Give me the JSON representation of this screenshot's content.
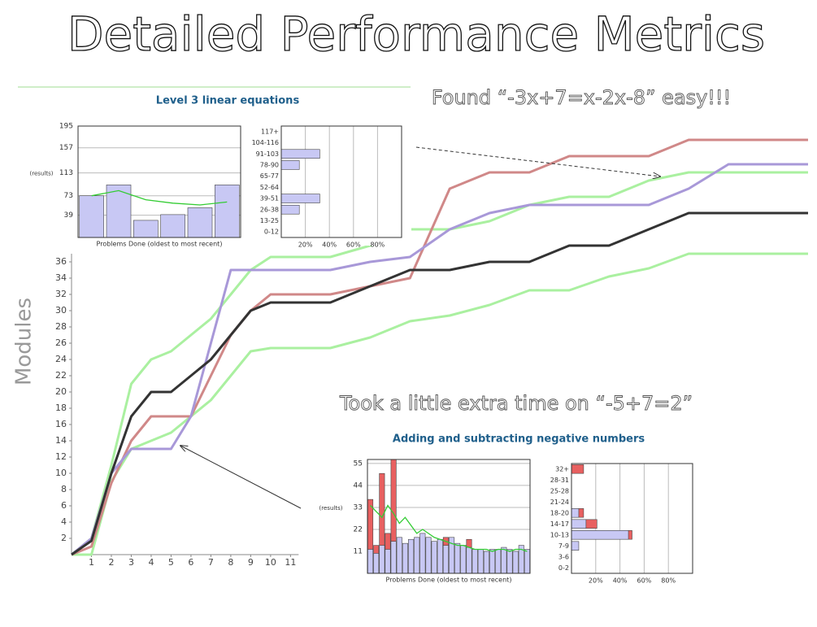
{
  "title": "Detailed Performance Metrics",
  "annotations": [
    "Found “-3x+7=x-2x-8” easy!!!",
    "Took a little extra time on “-5+7=2”"
  ],
  "chart_data": [
    {
      "type": "line",
      "ylabel": "Modules",
      "x": [
        0,
        1,
        2,
        3,
        4,
        5,
        6,
        7,
        8,
        9,
        10,
        11,
        13,
        15,
        17,
        19,
        21,
        23,
        25,
        27,
        29,
        31,
        33,
        35,
        37
      ],
      "xlim": [
        0,
        37
      ],
      "xticks": [
        1,
        2,
        3,
        4,
        5,
        6,
        7,
        8,
        9,
        10,
        11
      ],
      "ylim": [
        0,
        52
      ],
      "yticks": [
        2,
        4,
        6,
        8,
        10,
        12,
        14,
        16,
        18,
        20,
        22,
        24,
        26,
        28,
        30,
        32,
        34,
        36
      ],
      "series": [
        {
          "color": "#aaf0a0",
          "values": [
            0,
            2,
            11,
            21,
            24,
            25,
            27,
            29,
            32,
            35,
            36.6,
            36.6,
            36.6,
            38,
            40,
            40,
            41,
            43,
            44,
            44,
            46,
            47,
            47,
            47,
            47
          ]
        },
        {
          "color": "#aaf0a0",
          "values": [
            0,
            0,
            9,
            13,
            14,
            15,
            17,
            19,
            22,
            25,
            25.4,
            25.4,
            25.4,
            26.7,
            28.7,
            29.4,
            30.7,
            32.5,
            32.5,
            34.2,
            35.2,
            37,
            37,
            37,
            37
          ]
        },
        {
          "color": "#d08888",
          "values": [
            0,
            1,
            8.8,
            14,
            17,
            17,
            17,
            22,
            27,
            30,
            32,
            32,
            32,
            33,
            34,
            45,
            47,
            47,
            49,
            49,
            49,
            51,
            51,
            51,
            51
          ]
        },
        {
          "color": "#a898d8",
          "values": [
            0,
            2,
            10,
            13,
            13,
            13,
            17,
            26,
            35,
            35,
            35,
            35,
            35,
            36,
            36.6,
            40,
            42,
            43,
            43,
            43,
            43,
            45,
            48,
            48,
            48
          ]
        },
        {
          "color": "#333333",
          "values": [
            0,
            1.7,
            10,
            17,
            20,
            20,
            22,
            24,
            27,
            30,
            31,
            31,
            31,
            33,
            35,
            35,
            36,
            36,
            38,
            38,
            40,
            42,
            42,
            42,
            42
          ]
        }
      ]
    },
    {
      "type": "bar",
      "title": "Level 3 linear equations",
      "ylabel": "(results)",
      "xlabel": "Problems Done (oldest to most recent)",
      "categories": [
        null,
        null,
        null,
        null,
        null,
        null
      ],
      "ylim": [
        0,
        195
      ],
      "yticks": [
        39,
        73,
        113,
        157,
        195
      ],
      "grid": true,
      "series": [
        {
          "style": "bar",
          "color": "#c8c8f4",
          "values": [
            73,
            92,
            30,
            40,
            52,
            92
          ]
        },
        {
          "style": "line",
          "color": "#33cc33",
          "values": [
            73,
            82,
            66,
            60,
            57,
            62
          ]
        }
      ]
    },
    {
      "type": "hbar",
      "categories": [
        "117+",
        "104-116",
        "91-103",
        "78-90",
        "65-77",
        "52-64",
        "39-51",
        "26-38",
        "13-25",
        "0-12"
      ],
      "xlim": [
        0,
        100
      ],
      "xticks": [
        {
          "value": 20,
          "label": "20%"
        },
        {
          "value": 40,
          "label": "40%"
        },
        {
          "value": 60,
          "label": "60%"
        },
        {
          "value": 80,
          "label": "80%"
        }
      ],
      "grid": true,
      "series": [
        {
          "color": "#c8c8f4",
          "values": [
            0,
            0,
            32,
            15,
            0,
            0,
            32,
            15,
            0,
            0
          ]
        }
      ]
    },
    {
      "type": "bar",
      "title": "Adding and subtracting negative numbers",
      "ylabel": "(results)",
      "xlabel": "Problems Done (oldest to most recent)",
      "categories": [
        null,
        null,
        null,
        null,
        null,
        null,
        null,
        null,
        null,
        null,
        null,
        null,
        null,
        null,
        null,
        null,
        null,
        null,
        null,
        null,
        null,
        null,
        null,
        null,
        null,
        null,
        null,
        null
      ],
      "ylim": [
        0,
        57
      ],
      "yticks": [
        11,
        22,
        33,
        44,
        55
      ],
      "grid": true,
      "series": [
        {
          "style": "bar",
          "color": "#e86060",
          "values": [
            37,
            14,
            50,
            20,
            57,
            null,
            null,
            null,
            null,
            null,
            null,
            null,
            null,
            18,
            null,
            null,
            null,
            17,
            null,
            null,
            null,
            null,
            null,
            null,
            null,
            null,
            null,
            null
          ]
        },
        {
          "style": "bar",
          "color": "#c8c8f4",
          "values": [
            12,
            10,
            14,
            12,
            16,
            18,
            15,
            17,
            18,
            20,
            18,
            16,
            17,
            14,
            18,
            15,
            14,
            13,
            12,
            12,
            11,
            12,
            12,
            13,
            12,
            11,
            14,
            12
          ]
        },
        {
          "style": "line",
          "color": "#33cc33",
          "values": [
            34,
            31,
            28,
            34,
            30,
            25,
            28,
            24,
            20,
            22,
            20,
            18,
            17,
            16,
            15,
            14,
            14,
            13,
            12,
            12,
            12,
            11,
            12,
            12,
            11,
            12,
            12,
            11
          ]
        }
      ]
    },
    {
      "type": "hbar",
      "categories": [
        "32+",
        "28-31",
        "25-28",
        "21-24",
        "18-20",
        "14-17",
        "10-13",
        "7-9",
        "3-6",
        "0-2"
      ],
      "xlim": [
        0,
        100
      ],
      "xticks": [
        {
          "value": 20,
          "label": "20%"
        },
        {
          "value": 40,
          "label": "40%"
        },
        {
          "value": 60,
          "label": "60%"
        },
        {
          "value": 80,
          "label": "80%"
        }
      ],
      "grid": true,
      "series": [
        {
          "color": "#e86060",
          "values": [
            10,
            0,
            0,
            0,
            10,
            21,
            50,
            0,
            0,
            0
          ]
        },
        {
          "color": "#c8c8f4",
          "values": [
            0,
            0,
            0,
            0,
            6,
            12,
            47,
            6,
            0,
            0
          ]
        }
      ]
    }
  ]
}
